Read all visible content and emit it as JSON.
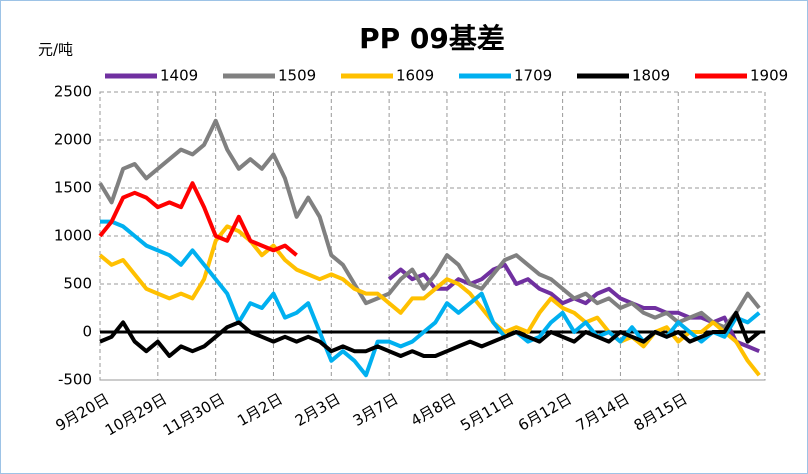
{
  "chart_data": {
    "type": "line",
    "title": "PP 09基差",
    "y_label": "元/吨",
    "categories": [
      "9月20日",
      null,
      null,
      null,
      null,
      "10月29日",
      null,
      null,
      null,
      null,
      "11月30日",
      null,
      null,
      null,
      null,
      "1月2日",
      null,
      null,
      null,
      null,
      "2月3日",
      null,
      null,
      null,
      null,
      "3月7日",
      null,
      null,
      null,
      null,
      "4月8日",
      null,
      null,
      null,
      null,
      "5月11日",
      null,
      null,
      null,
      null,
      "6月12日",
      null,
      null,
      null,
      null,
      "7月14日",
      null,
      null,
      null,
      null,
      "8月15日",
      null,
      null,
      null,
      null,
      null,
      null,
      null
    ],
    "series": [
      {
        "name": "1409",
        "color": "#7030a0",
        "values": [
          null,
          null,
          null,
          null,
          null,
          null,
          null,
          null,
          null,
          null,
          null,
          null,
          null,
          null,
          null,
          null,
          null,
          null,
          null,
          null,
          null,
          null,
          null,
          null,
          null,
          550,
          650,
          550,
          600,
          450,
          450,
          550,
          500,
          550,
          650,
          700,
          500,
          550,
          450,
          400,
          300,
          350,
          300,
          400,
          450,
          350,
          300,
          250,
          250,
          200,
          200,
          150,
          150,
          100,
          150,
          -100,
          -150,
          -200
        ]
      },
      {
        "name": "1509",
        "color": "#808080",
        "values": [
          1550,
          1350,
          1700,
          1750,
          1600,
          1700,
          1800,
          1900,
          1850,
          1950,
          2200,
          1900,
          1700,
          1800,
          1700,
          1850,
          1600,
          1200,
          1400,
          1200,
          800,
          700,
          500,
          300,
          350,
          400,
          550,
          650,
          450,
          600,
          800,
          700,
          500,
          450,
          600,
          750,
          800,
          700,
          600,
          550,
          450,
          350,
          400,
          300,
          350,
          250,
          300,
          200,
          150,
          200,
          100,
          150,
          200,
          100,
          50,
          200,
          400,
          250
        ]
      },
      {
        "name": "1609",
        "color": "#ffc000",
        "values": [
          800,
          700,
          750,
          600,
          450,
          400,
          350,
          400,
          350,
          550,
          950,
          1100,
          1050,
          950,
          800,
          900,
          750,
          650,
          600,
          550,
          600,
          550,
          450,
          400,
          400,
          300,
          200,
          350,
          350,
          450,
          550,
          500,
          400,
          250,
          100,
          0,
          50,
          0,
          200,
          350,
          250,
          200,
          100,
          150,
          0,
          -100,
          -50,
          -150,
          0,
          50,
          -100,
          0,
          0,
          100,
          0,
          -100,
          -300,
          -450
        ]
      },
      {
        "name": "1709",
        "color": "#00b0f0",
        "values": [
          1150,
          1150,
          1100,
          1000,
          900,
          850,
          800,
          700,
          850,
          700,
          550,
          400,
          100,
          300,
          250,
          400,
          150,
          200,
          300,
          0,
          -300,
          -200,
          -300,
          -450,
          -100,
          -100,
          -150,
          -100,
          0,
          100,
          300,
          200,
          300,
          400,
          100,
          -50,
          0,
          -100,
          -50,
          100,
          200,
          0,
          100,
          -50,
          0,
          -100,
          50,
          -100,
          0,
          -50,
          100,
          0,
          -100,
          0,
          -50,
          150,
          100,
          200
        ]
      },
      {
        "name": "1809",
        "color": "#000000",
        "values": [
          -100,
          -50,
          100,
          -100,
          -200,
          -100,
          -250,
          -150,
          -200,
          -150,
          -50,
          50,
          100,
          0,
          -50,
          -100,
          -50,
          -100,
          -50,
          -100,
          -200,
          -150,
          -200,
          -200,
          -150,
          -200,
          -250,
          -200,
          -250,
          -250,
          -200,
          -150,
          -100,
          -150,
          -100,
          -50,
          0,
          -50,
          -100,
          0,
          -50,
          -100,
          0,
          -50,
          -100,
          0,
          -50,
          -100,
          0,
          -50,
          0,
          -100,
          -50,
          0,
          0,
          200,
          -100,
          0
        ]
      },
      {
        "name": "1909",
        "color": "#ff0000",
        "values": [
          1000,
          1150,
          1400,
          1450,
          1400,
          1300,
          1350,
          1300,
          1550,
          1300,
          1000,
          950,
          1200,
          950,
          900,
          850,
          900,
          800,
          null,
          null,
          null,
          null,
          null,
          null,
          null,
          null,
          null,
          null,
          null,
          null,
          null,
          null,
          null,
          null,
          null,
          null,
          null,
          null,
          null,
          null,
          null,
          null,
          null,
          null,
          null,
          null,
          null,
          null,
          null,
          null,
          null,
          null,
          null,
          null,
          null,
          null,
          null,
          null
        ]
      }
    ],
    "ylim": [
      -500,
      2500
    ],
    "yticks": [
      -500,
      0,
      500,
      1000,
      1500,
      2000,
      2500
    ],
    "grid": true,
    "legend": "top"
  }
}
